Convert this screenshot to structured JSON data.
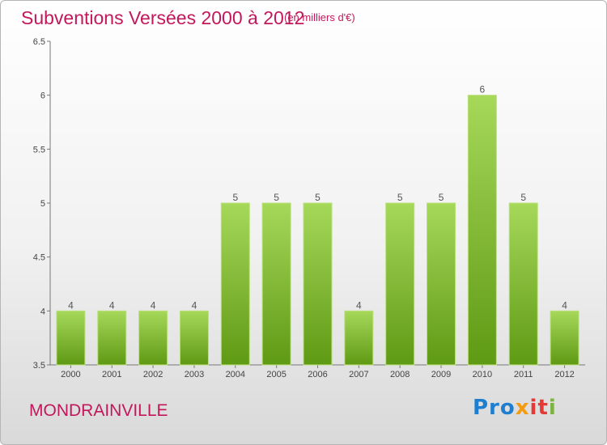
{
  "title": "Subventions Versées 2000 à 2012",
  "subtitle": "(en milliers d'€)",
  "commune": "MONDRAINVILLE",
  "logo": {
    "text": "Proxiti",
    "parts": [
      "Pro",
      "x",
      "it",
      "i"
    ]
  },
  "colors": {
    "title": "#c2185b",
    "bar_top": "#a6d85a",
    "bar_bottom": "#5f9a14"
  },
  "chart_data": {
    "type": "bar",
    "categories": [
      "2000",
      "2001",
      "2002",
      "2003",
      "2004",
      "2005",
      "2006",
      "2007",
      "2008",
      "2009",
      "2010",
      "2011",
      "2012"
    ],
    "values": [
      4,
      4,
      4,
      4,
      5,
      5,
      5,
      4,
      5,
      5,
      6,
      5,
      4
    ],
    "ylim": [
      3.5,
      6.5
    ],
    "yticks": [
      "3.5",
      "4",
      "4.5",
      "5",
      "5.5",
      "6",
      "6.5"
    ],
    "grid": false
  }
}
